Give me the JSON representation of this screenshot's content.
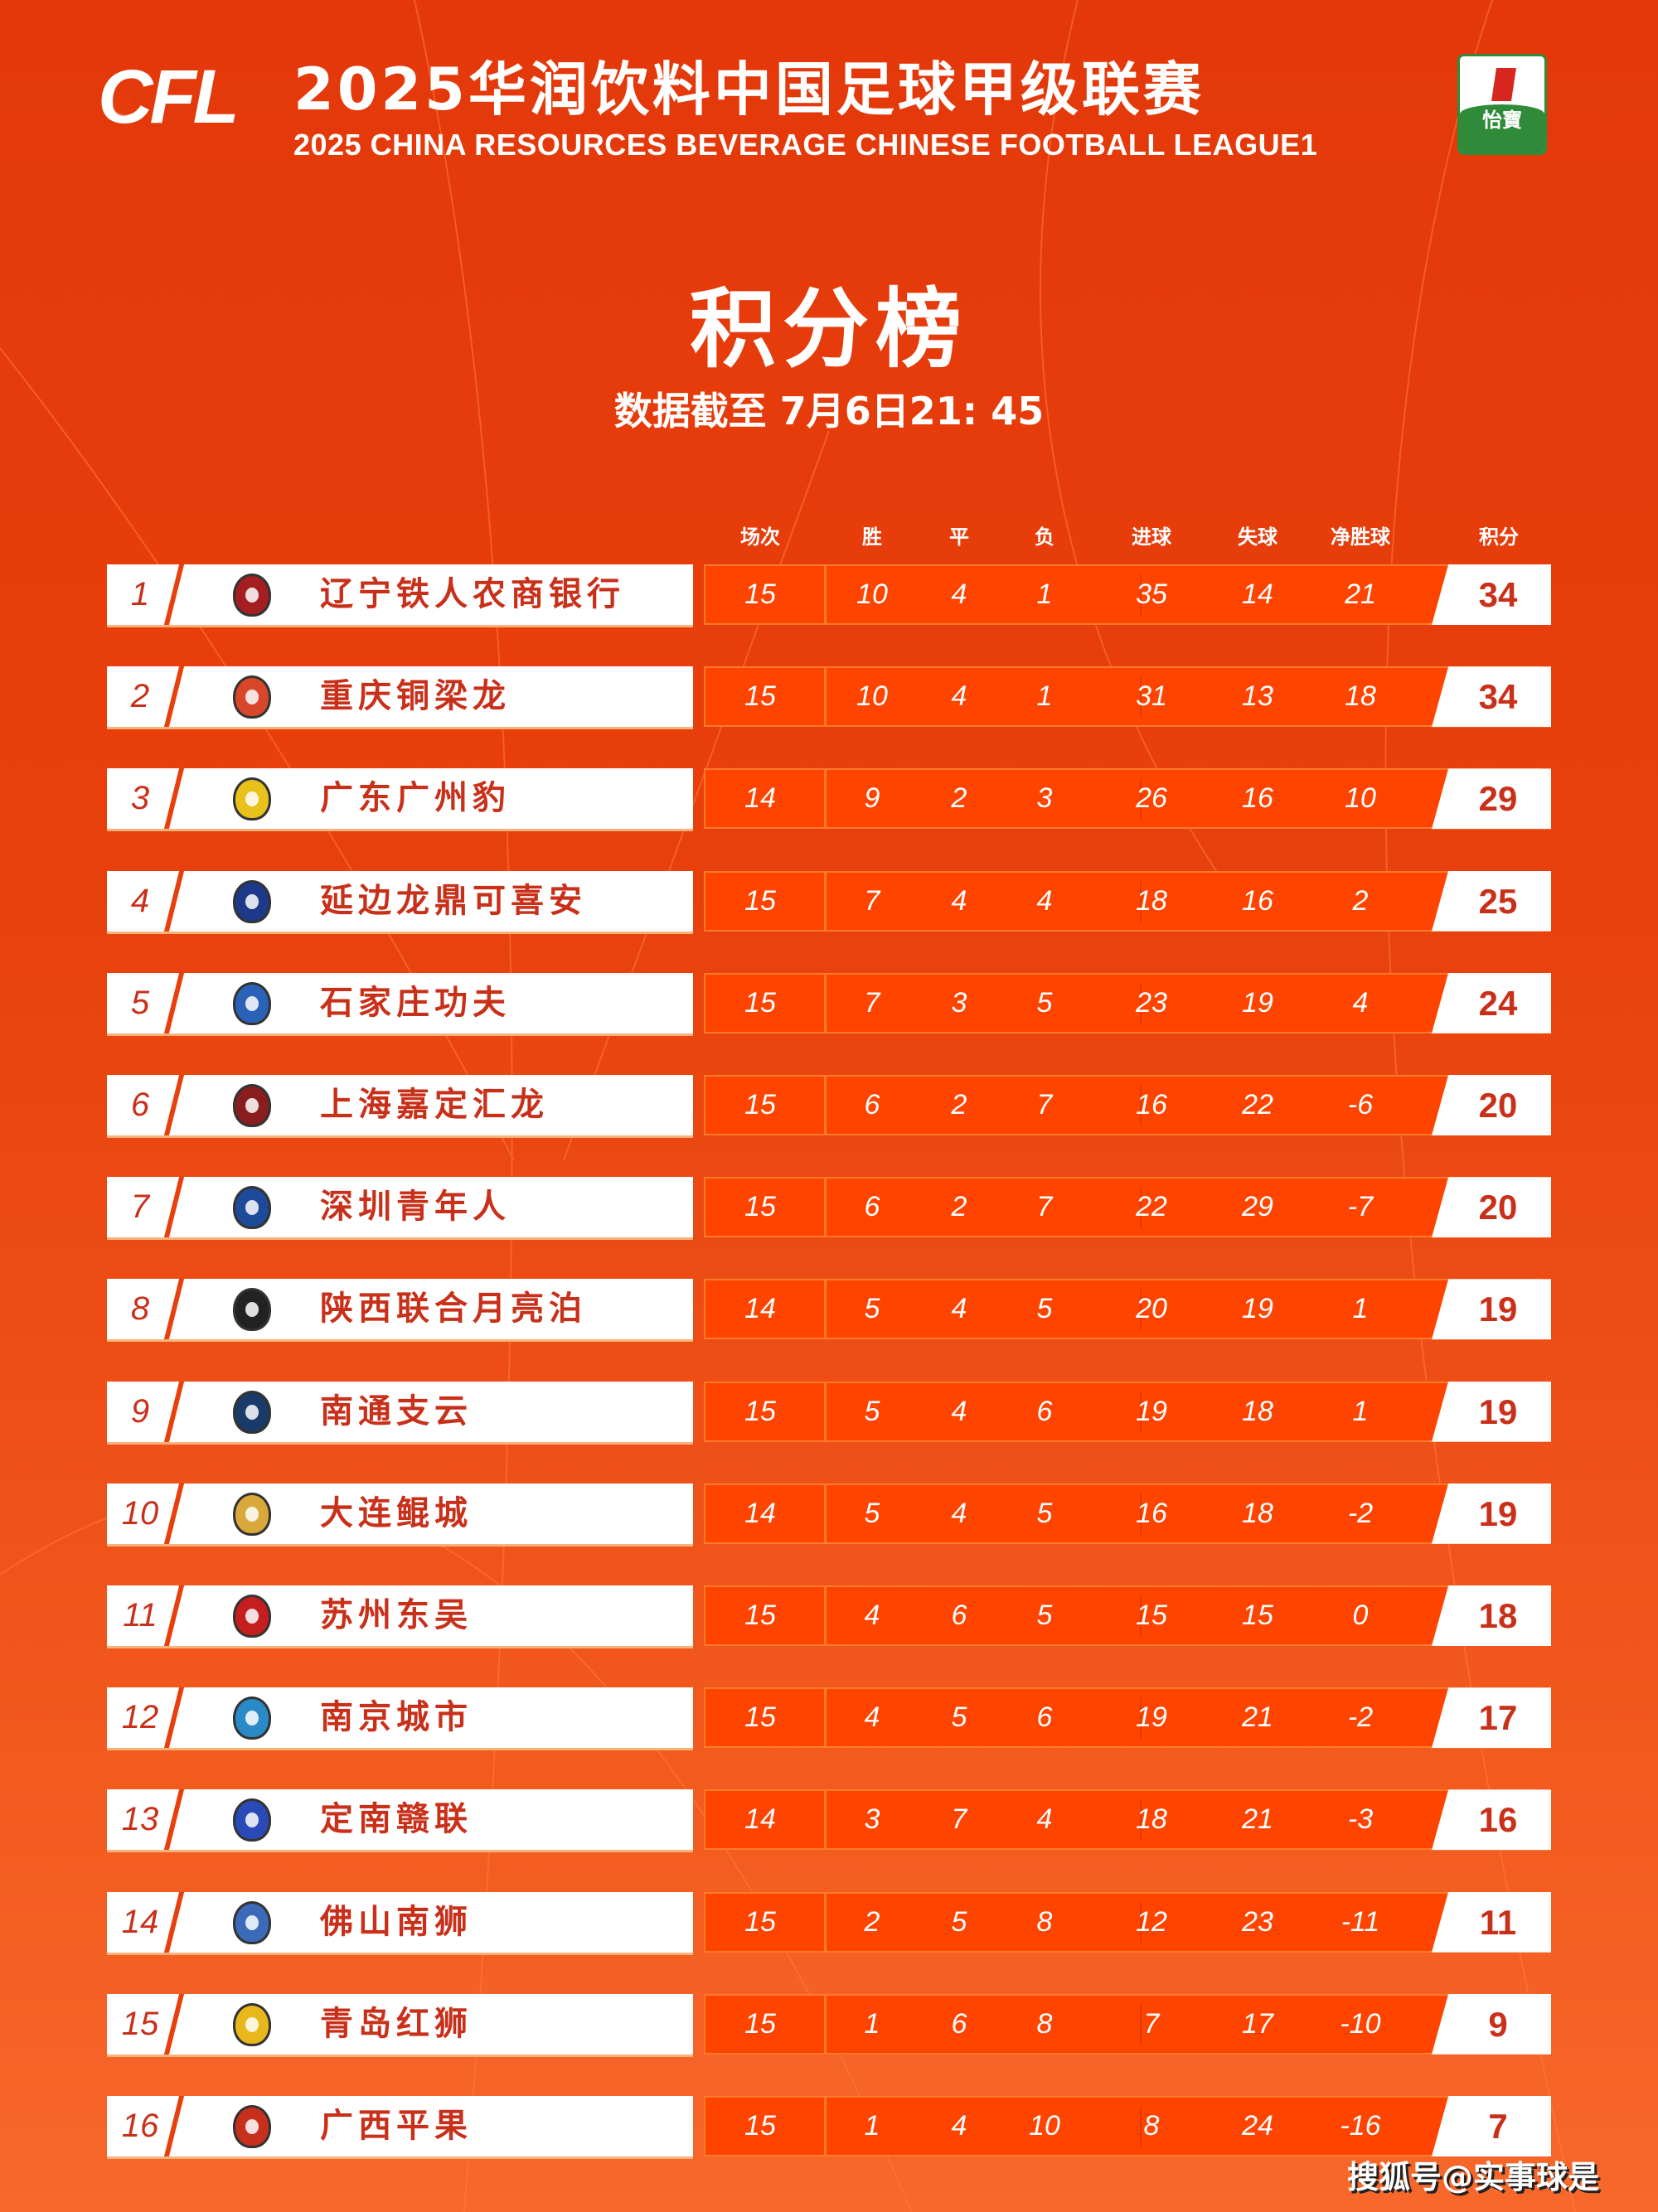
{
  "header": {
    "league_logo_text": "CFL",
    "title_cn": "2025华润饮料中国足球甲级联赛",
    "title_en": "2025 CHINA RESOURCES BEVERAGE CHINESE FOOTBALL LEAGUE1",
    "sponsor_text": "怡寶",
    "page_title": "积分榜",
    "data_as_of": "数据截至 7月6日21: 45"
  },
  "columns": [
    "场次",
    "胜",
    "平",
    "负",
    "进球",
    "失球",
    "净胜球",
    "积分"
  ],
  "colors": {
    "accent": "#e8400c",
    "stat_box": "#ff4400",
    "team_text": "#c9301a"
  },
  "teams": [
    {
      "rank": "1",
      "name": "辽宁铁人农商银行",
      "played": "15",
      "w": "10",
      "d": "4",
      "l": "1",
      "gf": "35",
      "ga": "14",
      "gd": "21",
      "pts": "34",
      "logo_color": "#a51e22"
    },
    {
      "rank": "2",
      "name": "重庆铜梁龙",
      "played": "15",
      "w": "10",
      "d": "4",
      "l": "1",
      "gf": "31",
      "ga": "13",
      "gd": "18",
      "pts": "34",
      "logo_color": "#d8472a"
    },
    {
      "rank": "3",
      "name": "广东广州豹",
      "played": "14",
      "w": "9",
      "d": "2",
      "l": "3",
      "gf": "26",
      "ga": "16",
      "gd": "10",
      "pts": "29",
      "logo_color": "#e8c21a"
    },
    {
      "rank": "4",
      "name": "延边龙鼎可喜安",
      "played": "15",
      "w": "7",
      "d": "4",
      "l": "4",
      "gf": "18",
      "ga": "16",
      "gd": "2",
      "pts": "25",
      "logo_color": "#1d3a8a"
    },
    {
      "rank": "5",
      "name": "石家庄功夫",
      "played": "15",
      "w": "7",
      "d": "3",
      "l": "5",
      "gf": "23",
      "ga": "19",
      "gd": "4",
      "pts": "24",
      "logo_color": "#2a62b8"
    },
    {
      "rank": "6",
      "name": "上海嘉定汇龙",
      "played": "15",
      "w": "6",
      "d": "2",
      "l": "7",
      "gf": "16",
      "ga": "22",
      "gd": "-6",
      "pts": "20",
      "logo_color": "#8a1e1e"
    },
    {
      "rank": "7",
      "name": "深圳青年人",
      "played": "15",
      "w": "6",
      "d": "2",
      "l": "7",
      "gf": "22",
      "ga": "29",
      "gd": "-7",
      "pts": "20",
      "logo_color": "#1e4a9a"
    },
    {
      "rank": "8",
      "name": "陕西联合月亮泊",
      "played": "14",
      "w": "5",
      "d": "4",
      "l": "5",
      "gf": "20",
      "ga": "19",
      "gd": "1",
      "pts": "19",
      "logo_color": "#222222"
    },
    {
      "rank": "9",
      "name": "南通支云",
      "played": "15",
      "w": "5",
      "d": "4",
      "l": "6",
      "gf": "19",
      "ga": "18",
      "gd": "1",
      "pts": "19",
      "logo_color": "#1a3a6a"
    },
    {
      "rank": "10",
      "name": "大连鲲城",
      "played": "14",
      "w": "5",
      "d": "4",
      "l": "5",
      "gf": "16",
      "ga": "18",
      "gd": "-2",
      "pts": "19",
      "logo_color": "#d8a83a"
    },
    {
      "rank": "11",
      "name": "苏州东吴",
      "played": "15",
      "w": "4",
      "d": "6",
      "l": "5",
      "gf": "15",
      "ga": "15",
      "gd": "0",
      "pts": "18",
      "logo_color": "#c41e1e"
    },
    {
      "rank": "12",
      "name": "南京城市",
      "played": "15",
      "w": "4",
      "d": "5",
      "l": "6",
      "gf": "19",
      "ga": "21",
      "gd": "-2",
      "pts": "17",
      "logo_color": "#2a8ac8"
    },
    {
      "rank": "13",
      "name": "定南赣联",
      "played": "14",
      "w": "3",
      "d": "7",
      "l": "4",
      "gf": "18",
      "ga": "21",
      "gd": "-3",
      "pts": "16",
      "logo_color": "#2a4ab8"
    },
    {
      "rank": "14",
      "name": "佛山南狮",
      "played": "15",
      "w": "2",
      "d": "5",
      "l": "8",
      "gf": "12",
      "ga": "23",
      "gd": "-11",
      "pts": "11",
      "logo_color": "#3a6ab8"
    },
    {
      "rank": "15",
      "name": "青岛红狮",
      "played": "15",
      "w": "1",
      "d": "6",
      "l": "8",
      "gf": "7",
      "ga": "17",
      "gd": "-10",
      "pts": "9",
      "logo_color": "#e8b81a"
    },
    {
      "rank": "16",
      "name": "广西平果",
      "played": "15",
      "w": "1",
      "d": "4",
      "l": "10",
      "gf": "8",
      "ga": "24",
      "gd": "-16",
      "pts": "7",
      "logo_color": "#c8301e"
    }
  ],
  "watermark": "搜狐号@实事球是"
}
